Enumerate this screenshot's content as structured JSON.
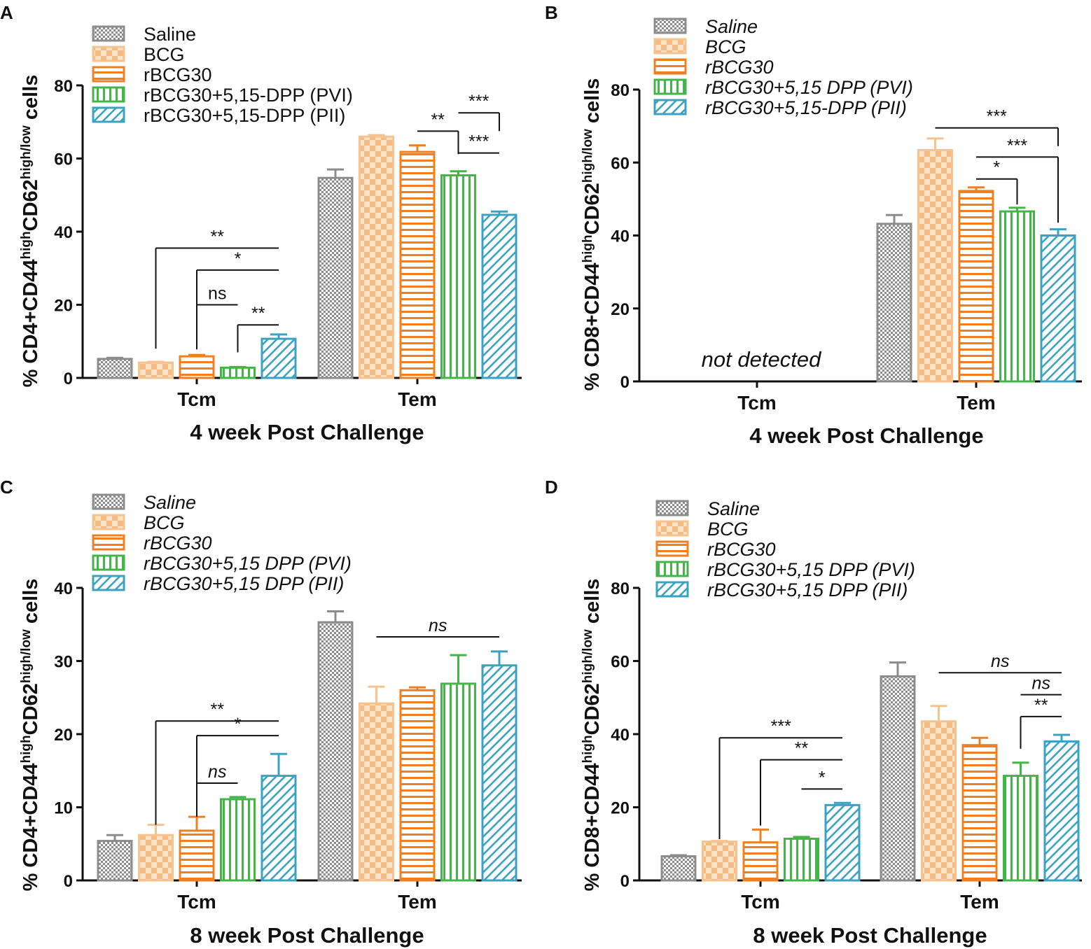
{
  "colors": {
    "saline": "#8c8c8c",
    "bcg": "#f6c28e",
    "rbcg30": "#f07f22",
    "pvi": "#44b649",
    "pii": "#3ba3bf",
    "axis": "#111111"
  },
  "chart_data": [
    {
      "type": "bar",
      "panel": "A",
      "title": "",
      "xlabel": "4 week Post Challenge",
      "ylabel_parts": [
        "% CD4+CD44",
        "high",
        "CD62",
        "high/low",
        " cells"
      ],
      "ylim": [
        0,
        80
      ],
      "yticks": [
        0,
        20,
        40,
        60,
        80
      ],
      "categories": [
        "Tcm",
        "Tem"
      ],
      "legend_italic": false,
      "legend_labels": [
        "Saline",
        "BCG",
        "rBCG30",
        "rBCG30+5,15-DPP (PVI)",
        "rBCG30+5,15-DPP (PII)"
      ],
      "series": [
        {
          "name": "Saline",
          "pattern": "saline",
          "values": [
            5.2,
            54.7
          ],
          "errors": [
            0.3,
            2.3
          ]
        },
        {
          "name": "BCG",
          "pattern": "bcg",
          "values": [
            4.2,
            66.0
          ],
          "errors": [
            0.2,
            0.4
          ]
        },
        {
          "name": "rBCG30",
          "pattern": "rbcg30",
          "values": [
            5.9,
            61.8
          ],
          "errors": [
            0.4,
            1.8
          ]
        },
        {
          "name": "rBCG30+5,15-DPP (PVI)",
          "pattern": "pvi",
          "values": [
            2.8,
            55.4
          ],
          "errors": [
            0.2,
            1.1
          ]
        },
        {
          "name": "rBCG30+5,15-DPP (PII)",
          "pattern": "pii",
          "values": [
            10.7,
            44.6
          ],
          "errors": [
            1.2,
            0.9
          ]
        }
      ],
      "annotations": [
        {
          "label": "**",
          "cat": 0,
          "from": 1,
          "to": 4,
          "y": 35.5,
          "dropFrom": 8,
          "dropTo": 0,
          "italic": false
        },
        {
          "label": "*",
          "cat": 0,
          "from": 2,
          "to": 4,
          "y": 29.5,
          "dropFrom": 7.8,
          "dropTo": 0,
          "italic": false
        },
        {
          "label": "ns",
          "cat": 0,
          "from": 2,
          "to": 3,
          "y": 20.0,
          "dropFrom": 12.5,
          "dropTo": 0,
          "italic": false
        },
        {
          "label": "**",
          "cat": 0,
          "from": 3,
          "to": 4,
          "y": 14.5,
          "dropFrom": 7.0,
          "dropTo": 0,
          "italic": false
        },
        {
          "label": "***",
          "cat": 1,
          "from": 3,
          "to": 4,
          "y": 72.5,
          "dropFrom": 0,
          "dropTo": 67.5,
          "italic": false
        },
        {
          "label": "**",
          "cat": 1,
          "from": 2,
          "to": 3,
          "y": 67.5,
          "dropFrom": 0,
          "dropTo": 61.2,
          "italic": false
        },
        {
          "label": "***",
          "cat": 1,
          "from": 3,
          "to": 4,
          "y": 61.5,
          "dropFrom": 0,
          "dropTo": 0,
          "italic": false
        }
      ],
      "note": ""
    },
    {
      "type": "bar",
      "panel": "B",
      "title": "",
      "xlabel": "4 week Post Challenge",
      "ylabel_parts": [
        "% CD8+CD44",
        "high",
        "CD62",
        "high/low",
        " cells"
      ],
      "ylim": [
        0,
        80
      ],
      "yticks": [
        0,
        20,
        40,
        60,
        80
      ],
      "categories": [
        "Tcm",
        "Tem"
      ],
      "legend_italic": true,
      "legend_labels": [
        "Saline",
        "BCG",
        "rBCG30",
        "rBCG30+5,15 DPP (PVI)",
        "rBCG30+5,15-DPP (PII)"
      ],
      "series": [
        {
          "name": "Saline",
          "pattern": "saline",
          "values": [
            null,
            43.2
          ],
          "errors": [
            0,
            2.4
          ]
        },
        {
          "name": "BCG",
          "pattern": "bcg",
          "values": [
            null,
            63.4
          ],
          "errors": [
            0,
            3.2
          ]
        },
        {
          "name": "rBCG30",
          "pattern": "rbcg30",
          "values": [
            null,
            52.2
          ],
          "errors": [
            0,
            1.0
          ]
        },
        {
          "name": "rBCG30+5,15 DPP (PVI)",
          "pattern": "pvi",
          "values": [
            null,
            46.6
          ],
          "errors": [
            0,
            1.0
          ]
        },
        {
          "name": "rBCG30+5,15-DPP (PII)",
          "pattern": "pii",
          "values": [
            null,
            40.0
          ],
          "errors": [
            0,
            1.7
          ]
        }
      ],
      "annotations": [
        {
          "label": "***",
          "cat": 1,
          "from": 1,
          "to": 4,
          "y": 69.5,
          "dropFrom": 0,
          "dropTo": 64.5,
          "italic": false
        },
        {
          "label": "***",
          "cat": 1,
          "from": 2,
          "to": 4,
          "y": 61.5,
          "dropFrom": 0,
          "dropTo": 43.5,
          "italic": false
        },
        {
          "label": "*",
          "cat": 1,
          "from": 2,
          "to": 3,
          "y": 55.5,
          "dropFrom": 0,
          "dropTo": 48.5,
          "italic": false
        }
      ],
      "note": "not detected"
    },
    {
      "type": "bar",
      "panel": "C",
      "title": "",
      "xlabel": "8 week Post Challenge",
      "ylabel_parts": [
        "% CD4+CD44",
        "high",
        "CD62",
        "high/low",
        " cells"
      ],
      "ylim": [
        0,
        40
      ],
      "yticks": [
        0,
        10,
        20,
        30,
        40
      ],
      "categories": [
        "Tcm",
        "Tem"
      ],
      "legend_italic": true,
      "legend_labels": [
        "Saline",
        "BCG",
        "rBCG30",
        "rBCG30+5,15 DPP (PVI)",
        "rBCG30+5,15 DPP (PII)"
      ],
      "series": [
        {
          "name": "Saline",
          "pattern": "saline",
          "values": [
            5.4,
            35.3
          ],
          "errors": [
            0.8,
            1.5
          ]
        },
        {
          "name": "BCG",
          "pattern": "bcg",
          "values": [
            6.2,
            24.2
          ],
          "errors": [
            1.4,
            2.3
          ]
        },
        {
          "name": "rBCG30",
          "pattern": "rbcg30",
          "values": [
            6.8,
            26.0
          ],
          "errors": [
            1.9,
            0.4
          ]
        },
        {
          "name": "rBCG30+5,15 DPP (PVI)",
          "pattern": "pvi",
          "values": [
            11.1,
            26.9
          ],
          "errors": [
            0.3,
            3.9
          ]
        },
        {
          "name": "rBCG30+5,15 DPP (PII)",
          "pattern": "pii",
          "values": [
            14.3,
            29.4
          ],
          "errors": [
            3.0,
            1.9
          ]
        }
      ],
      "annotations": [
        {
          "label": "**",
          "cat": 0,
          "from": 1,
          "to": 4,
          "y": 21.8,
          "dropFrom": 7.6,
          "dropTo": 0,
          "italic": false
        },
        {
          "label": "*",
          "cat": 0,
          "from": 2,
          "to": 4,
          "y": 19.8,
          "dropFrom": 8.7,
          "dropTo": 0,
          "italic": false
        },
        {
          "label": "ns",
          "cat": 0,
          "from": 2,
          "to": 3,
          "y": 13.3,
          "dropFrom": 0,
          "dropTo": 0,
          "italic": true
        },
        {
          "label": "ns",
          "cat": 1,
          "from": 1,
          "to": 4,
          "y": 33.3,
          "dropFrom": 0,
          "dropTo": 0,
          "italic": true
        }
      ],
      "note": ""
    },
    {
      "type": "bar",
      "panel": "D",
      "title": "",
      "xlabel": "8 week Post Challenge",
      "ylabel_parts": [
        "% CD8+CD44",
        "high",
        "CD62",
        "high/low",
        " cells"
      ],
      "ylim": [
        0,
        80
      ],
      "yticks": [
        0,
        20,
        40,
        60,
        80
      ],
      "categories": [
        "Tcm",
        "Tem"
      ],
      "legend_italic": true,
      "legend_labels": [
        "Saline",
        "BCG",
        "rBCG30",
        "rBCG30+5,15 DPP (PVI)",
        "rBCG30+5,15 DPP (PII)"
      ],
      "series": [
        {
          "name": "Saline",
          "pattern": "saline",
          "values": [
            6.6,
            55.8
          ],
          "errors": [
            0.3,
            3.8
          ]
        },
        {
          "name": "BCG",
          "pattern": "bcg",
          "values": [
            10.6,
            43.5
          ],
          "errors": [
            0.2,
            4.2
          ]
        },
        {
          "name": "rBCG30",
          "pattern": "rbcg30",
          "values": [
            10.4,
            37.0
          ],
          "errors": [
            3.5,
            2.0
          ]
        },
        {
          "name": "rBCG30+5,15 DPP (PVI)",
          "pattern": "pvi",
          "values": [
            11.4,
            28.6
          ],
          "errors": [
            0.5,
            3.6
          ]
        },
        {
          "name": "rBCG30+5,15 DPP (PII)",
          "pattern": "pii",
          "values": [
            20.6,
            38.0
          ],
          "errors": [
            0.6,
            1.8
          ]
        }
      ],
      "annotations": [
        {
          "label": "***",
          "cat": 0,
          "from": 1,
          "to": 4,
          "y": 39.0,
          "dropFrom": 11.3,
          "dropTo": 0,
          "italic": false
        },
        {
          "label": "**",
          "cat": 0,
          "from": 2,
          "to": 4,
          "y": 33.0,
          "dropFrom": 15.0,
          "dropTo": 0,
          "italic": false
        },
        {
          "label": "*",
          "cat": 0,
          "from": 3,
          "to": 4,
          "y": 25.0,
          "dropFrom": 0,
          "dropTo": 0,
          "italic": false
        },
        {
          "label": "ns",
          "cat": 1,
          "from": 1,
          "to": 4,
          "y": 56.8,
          "dropFrom": 0,
          "dropTo": 0,
          "italic": true
        },
        {
          "label": "ns",
          "cat": 1,
          "from": 3,
          "to": 4,
          "y": 50.8,
          "dropFrom": 0,
          "dropTo": 0,
          "italic": true
        },
        {
          "label": "**",
          "cat": 1,
          "from": 3,
          "to": 4,
          "y": 44.8,
          "dropFrom": 36.0,
          "dropTo": 0,
          "italic": false
        }
      ],
      "note": ""
    }
  ]
}
